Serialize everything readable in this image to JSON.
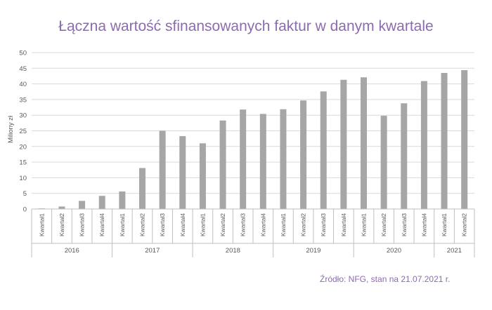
{
  "chart_data": {
    "type": "bar",
    "title": "Łączna wartość sfinansowanych faktur w danym kwartale",
    "ylabel": "Miliony zł",
    "xlabel": "",
    "ylim": [
      0,
      50
    ],
    "yticks": [
      0,
      5,
      10,
      15,
      20,
      25,
      30,
      35,
      40,
      45,
      50
    ],
    "grid": true,
    "colors": {
      "bar": "#a6a6a6",
      "grid": "#d9d9d9",
      "title": "#8c6bb1",
      "text": "#595959"
    },
    "categories": [
      "Kwartał1",
      "Kwartał2",
      "Kwartał3",
      "Kwartał4",
      "Kwartał1",
      "Kwartał2",
      "Kwartał3",
      "Kwartał4",
      "Kwartał1",
      "Kwartał2",
      "Kwartał3",
      "Kwartał4",
      "Kwartał1",
      "Kwartał2",
      "Kwartał3",
      "Kwartał4",
      "Kwartał1",
      "Kwartał2",
      "Kwartał3",
      "Kwartał4",
      "Kwartał1",
      "Kwartał2"
    ],
    "groups": [
      {
        "label": "2016",
        "count": 4
      },
      {
        "label": "2017",
        "count": 4
      },
      {
        "label": "2018",
        "count": 4
      },
      {
        "label": "2019",
        "count": 4
      },
      {
        "label": "2020",
        "count": 4
      },
      {
        "label": "2021",
        "count": 2
      }
    ],
    "values": [
      0.2,
      0.8,
      2.6,
      4.2,
      5.6,
      13.1,
      25.0,
      23.3,
      21.0,
      28.3,
      31.8,
      30.4,
      31.9,
      34.7,
      37.6,
      41.3,
      42.1,
      29.8,
      33.8,
      40.9,
      43.5,
      44.4
    ]
  },
  "source": "Źródło: NFG, stan na 21.07.2021 r."
}
